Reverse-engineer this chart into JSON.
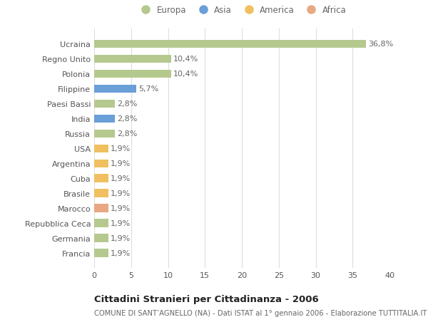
{
  "categories": [
    "Francia",
    "Germania",
    "Repubblica Ceca",
    "Marocco",
    "Brasile",
    "Cuba",
    "Argentina",
    "USA",
    "Russia",
    "India",
    "Paesi Bassi",
    "Filippine",
    "Polonia",
    "Regno Unito",
    "Ucraina"
  ],
  "values": [
    1.9,
    1.9,
    1.9,
    1.9,
    1.9,
    1.9,
    1.9,
    1.9,
    2.8,
    2.8,
    2.8,
    5.7,
    10.4,
    10.4,
    36.8
  ],
  "colors": [
    "#b5c98e",
    "#b5c98e",
    "#b5c98e",
    "#e8a882",
    "#f0c060",
    "#f0c060",
    "#f0c060",
    "#f0c060",
    "#b5c98e",
    "#6a9fd8",
    "#b5c98e",
    "#6a9fd8",
    "#b5c98e",
    "#b5c98e",
    "#b5c98e"
  ],
  "labels": [
    "1,9%",
    "1,9%",
    "1,9%",
    "1,9%",
    "1,9%",
    "1,9%",
    "1,9%",
    "1,9%",
    "2,8%",
    "2,8%",
    "2,8%",
    "5,7%",
    "10,4%",
    "10,4%",
    "36,8%"
  ],
  "legend": [
    {
      "label": "Europa",
      "color": "#b5c98e"
    },
    {
      "label": "Asia",
      "color": "#6a9fd8"
    },
    {
      "label": "America",
      "color": "#f0c060"
    },
    {
      "label": "Africa",
      "color": "#e8a882"
    }
  ],
  "xlim": [
    0,
    40
  ],
  "xticks": [
    0,
    5,
    10,
    15,
    20,
    25,
    30,
    35,
    40
  ],
  "title_main": "Cittadini Stranieri per Cittadinanza - 2006",
  "title_sub": "COMUNE DI SANT’AGNELLO (NA) - Dati ISTAT al 1° gennaio 2006 - Elaborazione TUTTITALIA.IT",
  "bg_color": "#ffffff",
  "grid_color": "#dddddd",
  "bar_height": 0.55,
  "label_fontsize": 8,
  "tick_fontsize": 8,
  "title_fontsize": 9.5,
  "sub_fontsize": 7.2
}
